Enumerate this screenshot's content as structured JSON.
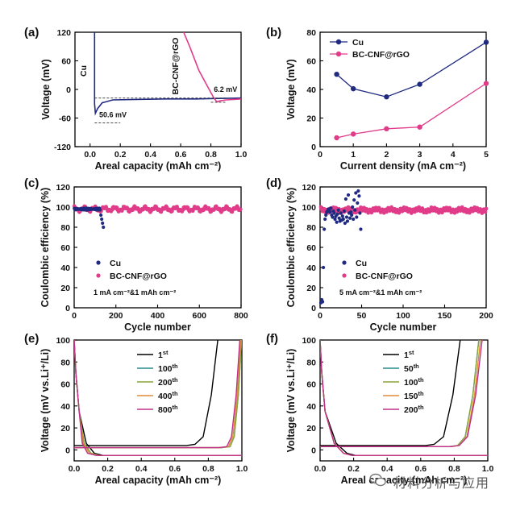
{
  "colors": {
    "cu": "#1f2a80",
    "bc": "#e03c8a",
    "black": "#000000",
    "teal": "#2a8c8c",
    "olive": "#8aa63a",
    "orange": "#e08a3a",
    "magenta": "#c0308a"
  },
  "watermark": "材料分析与应用",
  "chart_data": [
    {
      "panel": "(a)",
      "type": "line",
      "xlabel": "Areal capacity (mAh cm⁻²)",
      "ylabel": "Voltage (mV)",
      "xlim": [
        -0.1,
        1.0
      ],
      "ylim": [
        -120,
        120
      ],
      "xticks": [
        "0.0",
        "0.2",
        "0.4",
        "0.6",
        "0.8",
        "1.0"
      ],
      "yticks": [
        "120",
        "60",
        "0",
        "-60",
        "-120"
      ],
      "annotations": [
        "Cu",
        "BC-CNF@rGO",
        "50.6 mV",
        "6.2 mV"
      ],
      "series": [
        {
          "name": "Cu",
          "x": [
            0.03,
            0.03,
            0.035,
            0.05,
            0.08,
            0.15,
            0.3,
            0.5,
            0.7,
            0.85,
            1.0
          ],
          "y": [
            120,
            -30,
            -50,
            -40,
            -28,
            -22,
            -21,
            -20,
            -20,
            -19,
            -18
          ]
        },
        {
          "name": "BC-CNF@rGO",
          "x": [
            0.62,
            0.66,
            0.72,
            0.78,
            0.82,
            0.84,
            0.86,
            0.9,
            0.95,
            1.0
          ],
          "y": [
            120,
            90,
            40,
            5,
            -18,
            -26,
            -24,
            -22,
            -21,
            -20
          ]
        }
      ]
    },
    {
      "panel": "(b)",
      "type": "line",
      "xlabel": "Current density (mA cm⁻²)",
      "ylabel": "Voltage (mV)",
      "xlim": [
        0,
        5
      ],
      "ylim": [
        0,
        80
      ],
      "xticks": [
        "0",
        "1",
        "2",
        "3",
        "4",
        "5"
      ],
      "yticks": [
        "0",
        "20",
        "40",
        "60",
        "80"
      ],
      "series": [
        {
          "name": "Cu",
          "x": [
            0.5,
            1,
            2,
            3,
            5
          ],
          "y": [
            50.6,
            40.5,
            34.8,
            43.6,
            73
          ]
        },
        {
          "name": "BC-CNF@rGO",
          "x": [
            0.5,
            1,
            2,
            3,
            5
          ],
          "y": [
            6.2,
            8.8,
            12.5,
            13.7,
            44.2
          ]
        }
      ]
    },
    {
      "panel": "(c)",
      "type": "scatter",
      "xlabel": "Cycle number",
      "ylabel": "Coulombic efficiency (%)",
      "xlim": [
        0,
        800
      ],
      "ylim": [
        0,
        120
      ],
      "xticks": [
        "0",
        "200",
        "400",
        "600",
        "800"
      ],
      "yticks": [
        "0",
        "20",
        "40",
        "60",
        "80",
        "100",
        "120"
      ],
      "condition": "1 mA cm⁻²&1 mAh cm⁻²",
      "series": [
        {
          "name": "Cu",
          "x_range": [
            1,
            140
          ],
          "y_level": 98,
          "drop_x": [
            128,
            132,
            136,
            140
          ],
          "drop_y": [
            92,
            88,
            84,
            80
          ]
        },
        {
          "name": "BC-CNF@rGO",
          "x_range": [
            1,
            800
          ],
          "y_level": 98
        }
      ]
    },
    {
      "panel": "(d)",
      "type": "scatter",
      "xlabel": "Cycle number",
      "ylabel": "Coulombic efficiency (%)",
      "xlim": [
        0,
        200
      ],
      "ylim": [
        0,
        120
      ],
      "xticks": [
        "0",
        "50",
        "100",
        "150",
        "200"
      ],
      "yticks": [
        "0",
        "20",
        "40",
        "60",
        "80",
        "100",
        "120"
      ],
      "condition": "5 mA cm⁻²&1 mAh cm⁻²",
      "series": [
        {
          "name": "Cu",
          "x": [
            1,
            2,
            3,
            4,
            5,
            6,
            7,
            8,
            9,
            10,
            11,
            12,
            13,
            14,
            15,
            16,
            17,
            18,
            19,
            20,
            21,
            22,
            23,
            24,
            25,
            26,
            27,
            28,
            29,
            30,
            31,
            32,
            33,
            34,
            35,
            36,
            37,
            38,
            39,
            40,
            41,
            42,
            43,
            44,
            45,
            46,
            47,
            48,
            49
          ],
          "y": [
            5,
            8,
            6,
            40,
            78,
            88,
            92,
            95,
            96,
            98,
            97,
            95,
            99,
            92,
            90,
            96,
            94,
            88,
            91,
            85,
            93,
            97,
            89,
            86,
            94,
            87,
            91,
            88,
            96,
            84,
            108,
            90,
            86,
            112,
            94,
            89,
            95,
            92,
            100,
            88,
            107,
            97,
            114,
            90,
            104,
            116,
            111,
            94,
            78
          ]
        },
        {
          "name": "BC-CNF@rGO",
          "x_range": [
            1,
            200
          ],
          "y_level": 97
        }
      ]
    },
    {
      "panel": "(e)",
      "type": "line",
      "xlabel": "Areal capacity (mAh cm⁻²)",
      "ylabel": "Voltage (mV vs.Li⁺/Li)",
      "xlim": [
        0,
        1.0
      ],
      "ylim": [
        -10,
        100
      ],
      "xticks": [
        "0.0",
        "0.2",
        "0.4",
        "0.6",
        "0.8",
        "1.0"
      ],
      "yticks": [
        "0",
        "20",
        "40",
        "60",
        "80",
        "100"
      ],
      "legend": [
        "1st",
        "100th",
        "200th",
        "400th",
        "800th"
      ],
      "series": [
        {
          "name": "1st",
          "plating_end": 0.12,
          "rise_start": 0.72,
          "rise_end": 0.86,
          "plateau": 4
        },
        {
          "name": "100th",
          "plating_end": 0.1,
          "rise_start": 0.93,
          "rise_end": 1.0,
          "plateau": 2
        },
        {
          "name": "200th",
          "plating_end": 0.1,
          "rise_start": 0.93,
          "rise_end": 1.0,
          "plateau": 2
        },
        {
          "name": "400th",
          "plating_end": 0.09,
          "rise_start": 0.92,
          "rise_end": 0.995,
          "plateau": 2
        },
        {
          "name": "800th",
          "plating_end": 0.08,
          "rise_start": 0.91,
          "rise_end": 0.99,
          "plateau": 2
        }
      ]
    },
    {
      "panel": "(f)",
      "type": "line",
      "xlabel": "Areal capacity (mAh cm⁻²)",
      "ylabel": "Voltage (mV vs.Li⁺/Li)",
      "xlim": [
        0,
        1.0
      ],
      "ylim": [
        -10,
        100
      ],
      "xticks": [
        "0.0",
        "0.2",
        "0.4",
        "0.6",
        "0.8",
        "1.0"
      ],
      "yticks": [
        "0",
        "20",
        "40",
        "60",
        "80",
        "100"
      ],
      "legend": [
        "1st",
        "50th",
        "100th",
        "150th",
        "200th"
      ],
      "series": [
        {
          "name": "1st",
          "plating_end": 0.16,
          "rise_start": 0.68,
          "rise_end": 0.84,
          "plateau": 4
        },
        {
          "name": "50th",
          "plating_end": 0.14,
          "rise_start": 0.82,
          "rise_end": 0.95,
          "plateau": 3
        },
        {
          "name": "100th",
          "plating_end": 0.14,
          "rise_start": 0.82,
          "rise_end": 0.95,
          "plateau": 3
        },
        {
          "name": "150th",
          "plating_end": 0.14,
          "rise_start": 0.83,
          "rise_end": 0.96,
          "plateau": 3
        },
        {
          "name": "200th",
          "plating_end": 0.14,
          "rise_start": 0.83,
          "rise_end": 0.97,
          "plateau": 3
        }
      ]
    }
  ]
}
